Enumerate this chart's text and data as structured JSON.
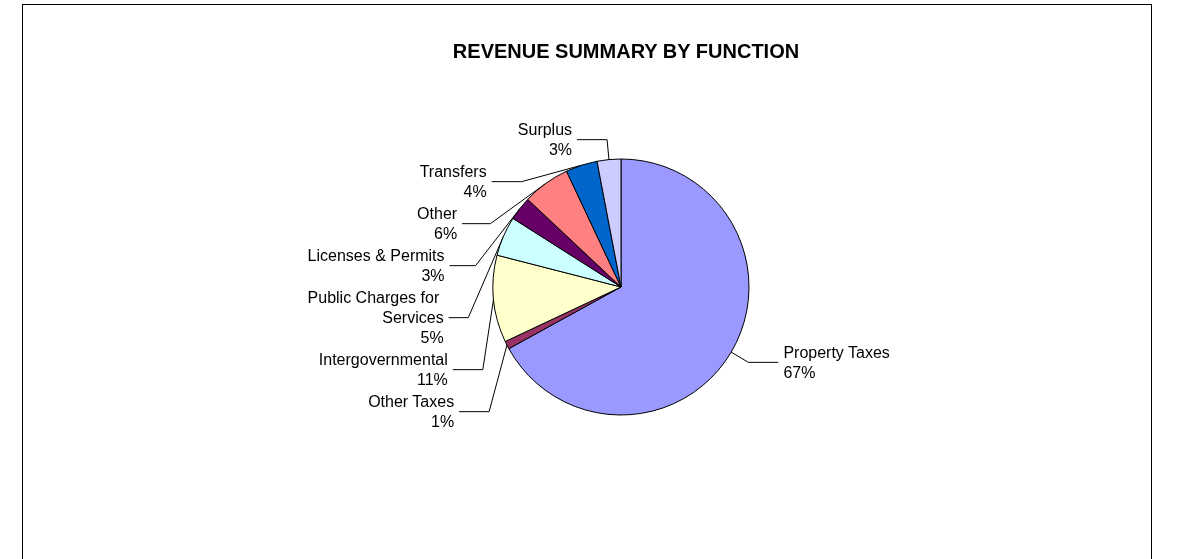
{
  "chart_data": {
    "type": "pie",
    "title": "REVENUE SUMMARY BY FUNCTION",
    "categories": [
      "Property Taxes",
      "Other Taxes",
      "Intergovernmental",
      "Public Charges for Services",
      "Licenses & Permits",
      "Other",
      "Transfers",
      "Surplus"
    ],
    "values": [
      67,
      1,
      11,
      5,
      3,
      6,
      4,
      3
    ],
    "value_labels": [
      "67%",
      "1%",
      "11%",
      "5%",
      "3%",
      "6%",
      "4%",
      "3%"
    ],
    "colors": [
      "#9999ff",
      "#993366",
      "#ffffcc",
      "#ccffff",
      "#660066",
      "#ff8080",
      "#0066cc",
      "#ccccff"
    ],
    "legend": false
  }
}
